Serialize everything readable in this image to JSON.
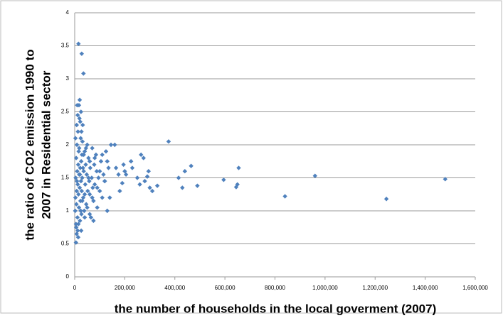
{
  "chart_data": {
    "type": "scatter",
    "xlabel": "the number of households in the local goverment (2007)",
    "ylabel": [
      "the ratio of CO2 emission 1990 to",
      "2007 in Residential sector"
    ],
    "color": "#4f81bd",
    "grid": true,
    "xlim": [
      0,
      1600000
    ],
    "ylim": [
      0,
      4
    ],
    "xticks": [
      0,
      {
        "value": 200000,
        "label": "200,000"
      },
      {
        "value": 400000,
        "label": "400,000"
      },
      {
        "value": 600000,
        "label": "600,000"
      },
      {
        "value": 800000,
        "label": "800,000"
      },
      {
        "value": 1000000,
        "label": "1,000,000"
      },
      {
        "value": 1200000,
        "label": "1,200,000"
      },
      {
        "value": 1400000,
        "label": "1,400,000"
      },
      {
        "value": 1600000,
        "label": "1,600,000"
      }
    ],
    "yticks": [
      0,
      0.5,
      1,
      1.5,
      2,
      2.5,
      3,
      3.5,
      4
    ],
    "x": [
      1480000,
      1245000,
      960000,
      840000,
      655000,
      650000,
      645000,
      595000,
      490000,
      465000,
      440000,
      430000,
      415000,
      375000,
      330000,
      310000,
      300000,
      295000,
      290000,
      280000,
      275000,
      265000,
      260000,
      250000,
      230000,
      225000,
      205000,
      200000,
      195000,
      190000,
      180000,
      175000,
      165000,
      160000,
      145000,
      140000,
      130000,
      120000,
      15000,
      28000,
      35000,
      20000,
      10000,
      25000,
      5000,
      8000,
      12000,
      2000,
      3000,
      4000,
      5000,
      6000,
      7000,
      8000,
      9000,
      10000,
      11000,
      12000,
      13000,
      14000,
      15000,
      16000,
      17000,
      18000,
      19000,
      20000,
      21000,
      22000,
      23000,
      24000,
      25000,
      26000,
      27000,
      28000,
      29000,
      30000,
      32000,
      34000,
      36000,
      38000,
      40000,
      42000,
      44000,
      46000,
      48000,
      50000,
      52000,
      55000,
      58000,
      60000,
      62000,
      65000,
      68000,
      70000,
      72000,
      75000,
      78000,
      80000,
      85000,
      88000,
      90000,
      95000,
      100000,
      105000,
      110000,
      115000,
      120000,
      125000,
      130000,
      135000,
      3000,
      6000,
      9000,
      12000,
      15000,
      18000,
      21000,
      24000,
      27000,
      30000,
      33000,
      36000,
      40000,
      45000,
      50000,
      55000,
      60000,
      70000,
      80000,
      90000,
      100000,
      110000,
      17000,
      22000,
      8000,
      31000,
      14000,
      26000,
      40000,
      60000,
      75000
    ],
    "values": [
      1.48,
      1.18,
      1.53,
      1.22,
      1.65,
      1.4,
      1.36,
      1.47,
      1.38,
      1.68,
      1.6,
      1.35,
      1.5,
      2.05,
      1.38,
      1.3,
      1.35,
      1.6,
      1.52,
      1.45,
      1.8,
      1.85,
      1.4,
      1.5,
      1.65,
      1.75,
      1.55,
      1.6,
      1.7,
      1.42,
      1.3,
      1.55,
      1.65,
      2.0,
      2.0,
      1.2,
      1.75,
      1.45,
      3.53,
      3.38,
      3.08,
      2.68,
      2.6,
      2.5,
      0.52,
      0.65,
      0.7,
      1.0,
      1.2,
      1.5,
      0.8,
      1.8,
      1.1,
      1.3,
      2.0,
      1.6,
      0.9,
      1.4,
      2.2,
      1.7,
      1.25,
      1.9,
      1.05,
      1.55,
      2.4,
      1.35,
      0.85,
      1.65,
      1.15,
      2.1,
      1.45,
      1.75,
      0.95,
      1.3,
      1.85,
      1.5,
      2.3,
      1.2,
      1.6,
      1.0,
      1.9,
      1.4,
      1.7,
      1.1,
      1.55,
      2.0,
      1.3,
      1.8,
      1.45,
      1.25,
      1.65,
      0.9,
      1.5,
      1.95,
      1.35,
      1.15,
      1.7,
      1.4,
      1.85,
      1.6,
      1.05,
      1.5,
      1.3,
      1.75,
      1.2,
      1.55,
      1.45,
      1.9,
      1.0,
      1.65,
      2.1,
      0.75,
      1.45,
      2.45,
      0.8,
      1.95,
      1.55,
      1.0,
      2.2,
      1.15,
      1.65,
      1.85,
      1.25,
      1.95,
      1.05,
      1.5,
      1.75,
      1.2,
      1.8,
      1.35,
      1.6,
      1.85,
      2.6,
      2.35,
      2.3,
      2.05,
      0.6,
      0.7,
      0.9,
      0.95,
      0.85
    ]
  }
}
